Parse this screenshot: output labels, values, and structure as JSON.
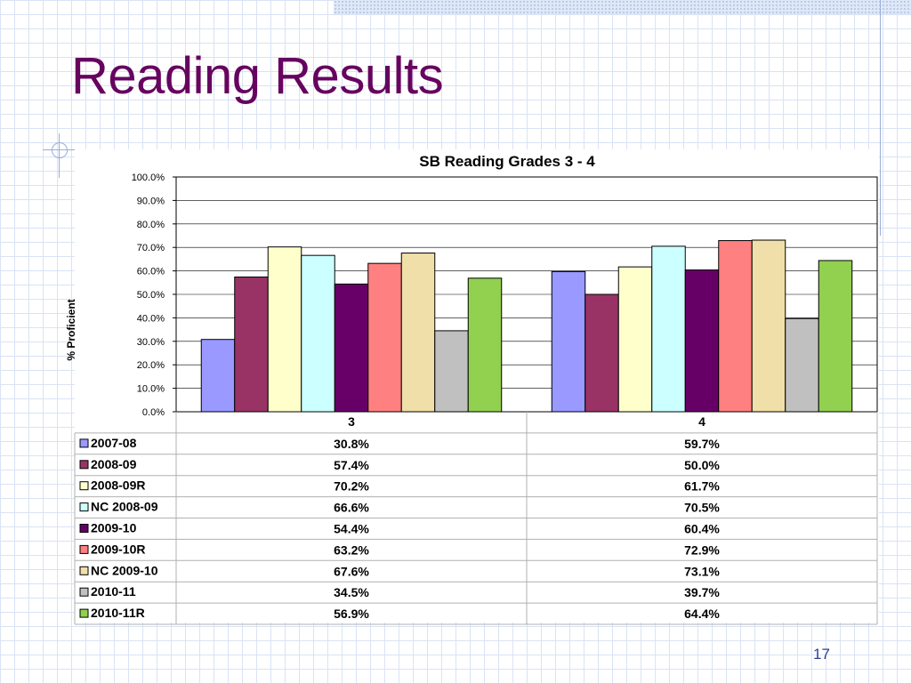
{
  "slide": {
    "title": "Reading Results",
    "page_number": "17"
  },
  "chart_data": {
    "type": "bar",
    "title": "SB Reading Grades 3 - 4",
    "ylabel": "% Proficient",
    "xlabel": "",
    "ylim": [
      0,
      100
    ],
    "y_ticks": [
      "0.0%",
      "10.0%",
      "20.0%",
      "30.0%",
      "40.0%",
      "50.0%",
      "60.0%",
      "70.0%",
      "80.0%",
      "90.0%",
      "100.0%"
    ],
    "grid": true,
    "legend": "data-table",
    "categories": [
      "3",
      "4"
    ],
    "series": [
      {
        "name": "2007-08",
        "color": "#9999ff",
        "values": [
          30.8,
          59.7
        ],
        "labels": [
          "30.8%",
          "59.7%"
        ]
      },
      {
        "name": "2008-09",
        "color": "#993366",
        "values": [
          57.4,
          50.0
        ],
        "labels": [
          "57.4%",
          "50.0%"
        ]
      },
      {
        "name": "2008-09R",
        "color": "#ffffcc",
        "values": [
          70.2,
          61.7
        ],
        "labels": [
          "70.2%",
          "61.7%"
        ]
      },
      {
        "name": "NC 2008-09",
        "color": "#ccffff",
        "values": [
          66.6,
          70.5
        ],
        "labels": [
          "66.6%",
          "70.5%"
        ]
      },
      {
        "name": "2009-10",
        "color": "#660066",
        "values": [
          54.4,
          60.4
        ],
        "labels": [
          "54.4%",
          "60.4%"
        ]
      },
      {
        "name": "2009-10R",
        "color": "#ff8080",
        "values": [
          63.2,
          72.9
        ],
        "labels": [
          "63.2%",
          "72.9%"
        ]
      },
      {
        "name": "NC 2009-10",
        "color": "#f0dfa8",
        "values": [
          67.6,
          73.1
        ],
        "labels": [
          "67.6%",
          "73.1%"
        ]
      },
      {
        "name": "2010-11",
        "color": "#c0c0c0",
        "values": [
          34.5,
          39.7
        ],
        "labels": [
          "34.5%",
          "39.7%"
        ]
      },
      {
        "name": "2010-11R",
        "color": "#92d050",
        "values": [
          56.9,
          64.4
        ],
        "labels": [
          "56.9%",
          "64.4%"
        ]
      }
    ]
  }
}
